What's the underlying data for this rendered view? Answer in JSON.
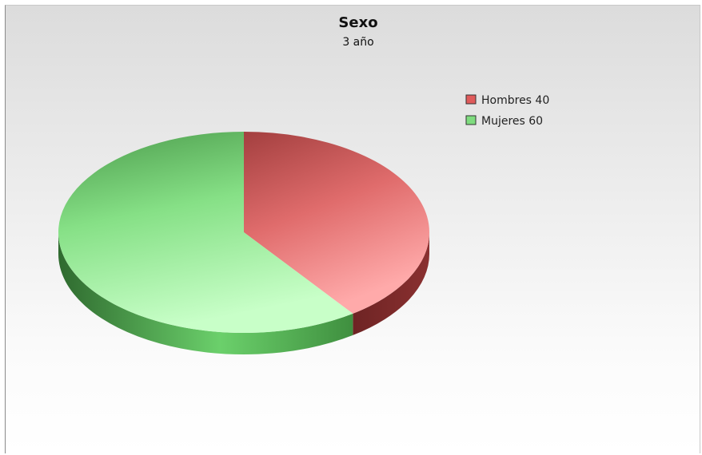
{
  "chart_data": {
    "type": "pie",
    "title": "Sexo",
    "subtitle": "3 año",
    "legend_position": "top-right",
    "slices": [
      {
        "label": "Hombres",
        "value": 40,
        "legend": "Hombres 40",
        "color": "#e05b5b",
        "light": "#ff9a9a",
        "dark": "#7a2a2a"
      },
      {
        "label": "Mujeres",
        "value": 60,
        "legend": "Mujeres 60",
        "color": "#7fdc7f",
        "light": "#c4ffc4",
        "dark": "#3f8f3f"
      }
    ]
  }
}
